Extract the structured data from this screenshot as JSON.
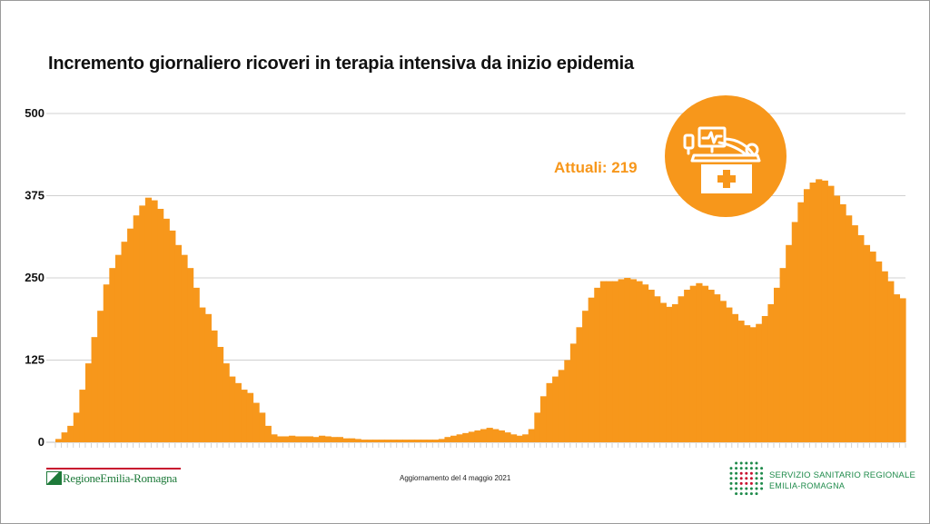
{
  "title": "Incremento giornaliero ricoveri in terapia intensiva da inizio epidemia",
  "attuali_label": "Attuali: 219",
  "footer": {
    "update": "Aggiornamento del 4 maggio 2021",
    "region_logo_text": "RegioneEmilia-Romagna",
    "ssr_line1": "SERVIZIO SANITARIO REGIONALE",
    "ssr_line2": "EMILIA-ROMAGNA"
  },
  "badge_icon": "icu-bed-icon",
  "colors": {
    "accent": "#F7971B",
    "grid": "#d0d0d0",
    "text": "#111111",
    "green": "#1e8a4a",
    "red": "#c8102e"
  },
  "chart_data": {
    "type": "area",
    "title": "Incremento giornaliero ricoveri in terapia intensiva da inizio epidemia",
    "xlabel": "",
    "ylabel": "",
    "ylim": [
      0,
      500
    ],
    "yticks": [
      0,
      125,
      250,
      375,
      500
    ],
    "grid": true,
    "series": [
      {
        "values": [
          5,
          15,
          25,
          45,
          80,
          120,
          160,
          200,
          240,
          265,
          285,
          305,
          325,
          345,
          360,
          372,
          368,
          355,
          340,
          322,
          300,
          285,
          265,
          235,
          205,
          195,
          170,
          145,
          120,
          100,
          90,
          80,
          75,
          60,
          45,
          25,
          12,
          9,
          9,
          10,
          9,
          9,
          9,
          8,
          10,
          9,
          8,
          8,
          6,
          6,
          5,
          4,
          4,
          4,
          4,
          4,
          4,
          4,
          4,
          4,
          4,
          4,
          4,
          4,
          5,
          8,
          10,
          12,
          14,
          16,
          18,
          20,
          22,
          20,
          18,
          15,
          12,
          10,
          12,
          20,
          45,
          70,
          90,
          100,
          110,
          125,
          150,
          175,
          200,
          220,
          235,
          245,
          245,
          245,
          248,
          250,
          248,
          245,
          240,
          232,
          222,
          212,
          206,
          210,
          222,
          232,
          238,
          242,
          238,
          232,
          225,
          215,
          205,
          195,
          185,
          178,
          175,
          180,
          192,
          210,
          235,
          265,
          300,
          335,
          365,
          385,
          395,
          400,
          398,
          390,
          375,
          362,
          345,
          330,
          315,
          300,
          290,
          275,
          260,
          245,
          225,
          219
        ]
      }
    ],
    "current_value": 219
  }
}
